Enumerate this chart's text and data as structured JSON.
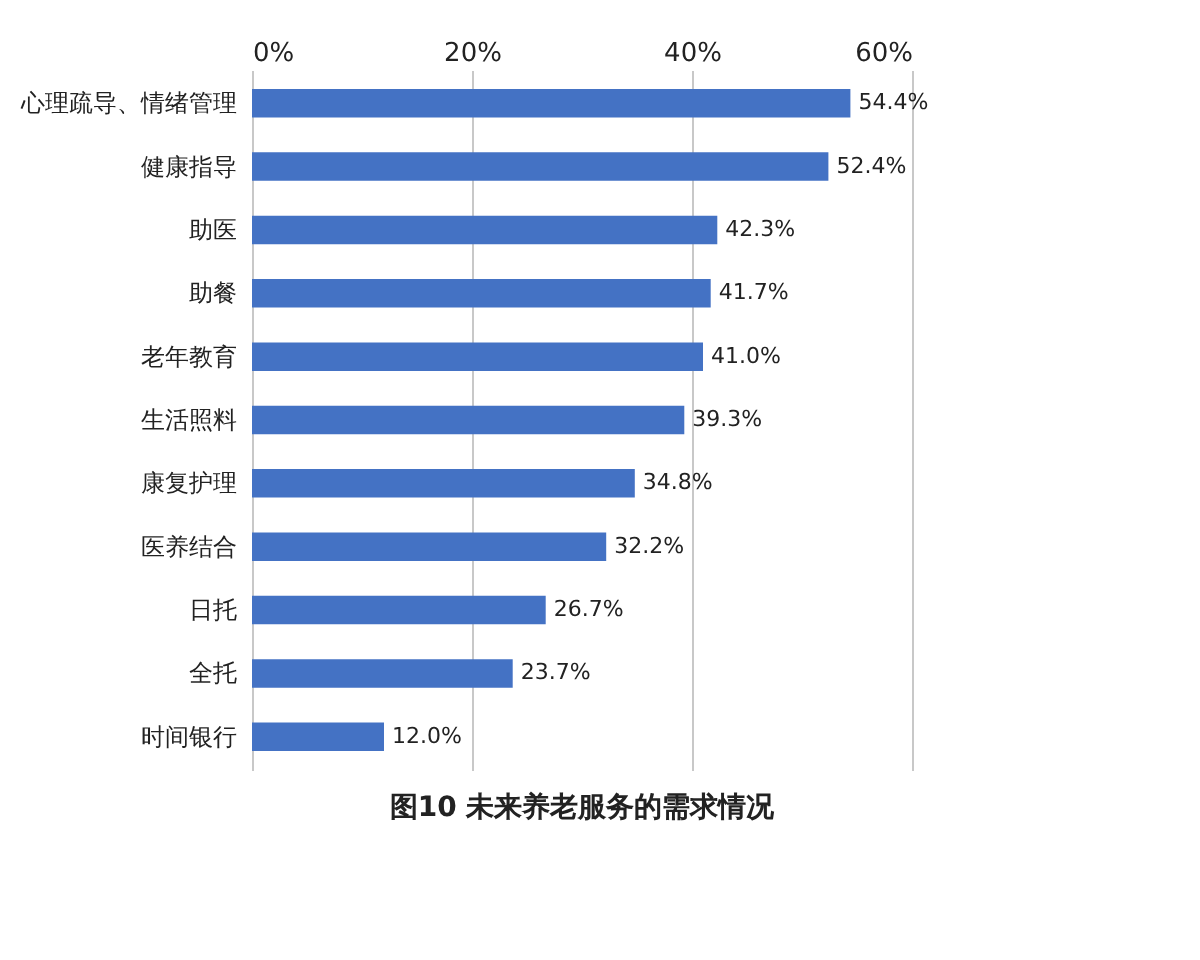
{
  "chart_data": {
    "type": "bar",
    "orientation": "horizontal",
    "title": "图10 未来养老服务的需求情况",
    "categories": [
      "心理疏导、情绪管理",
      "健康指导",
      "助医",
      "助餐",
      "老年教育",
      "生活照料",
      "康复护理",
      "医养结合",
      "日托",
      "全托",
      "时间银行"
    ],
    "values": [
      54.4,
      52.4,
      42.3,
      41.7,
      41.0,
      39.3,
      34.8,
      32.2,
      26.7,
      23.7,
      12.0
    ],
    "value_labels": [
      "54.4%",
      "52.4%",
      "42.3%",
      "41.7%",
      "41.0%",
      "39.3%",
      "34.8%",
      "32.2%",
      "26.7%",
      "23.7%",
      "12.0%"
    ],
    "color": "#4472c4",
    "xlim": [
      0,
      60
    ],
    "xticks": [
      {
        "value": 0,
        "label": "0%"
      },
      {
        "value": 20,
        "label": "20%"
      },
      {
        "value": 40,
        "label": "40%"
      },
      {
        "value": 60,
        "label": "60%"
      }
    ],
    "grid": "x"
  }
}
